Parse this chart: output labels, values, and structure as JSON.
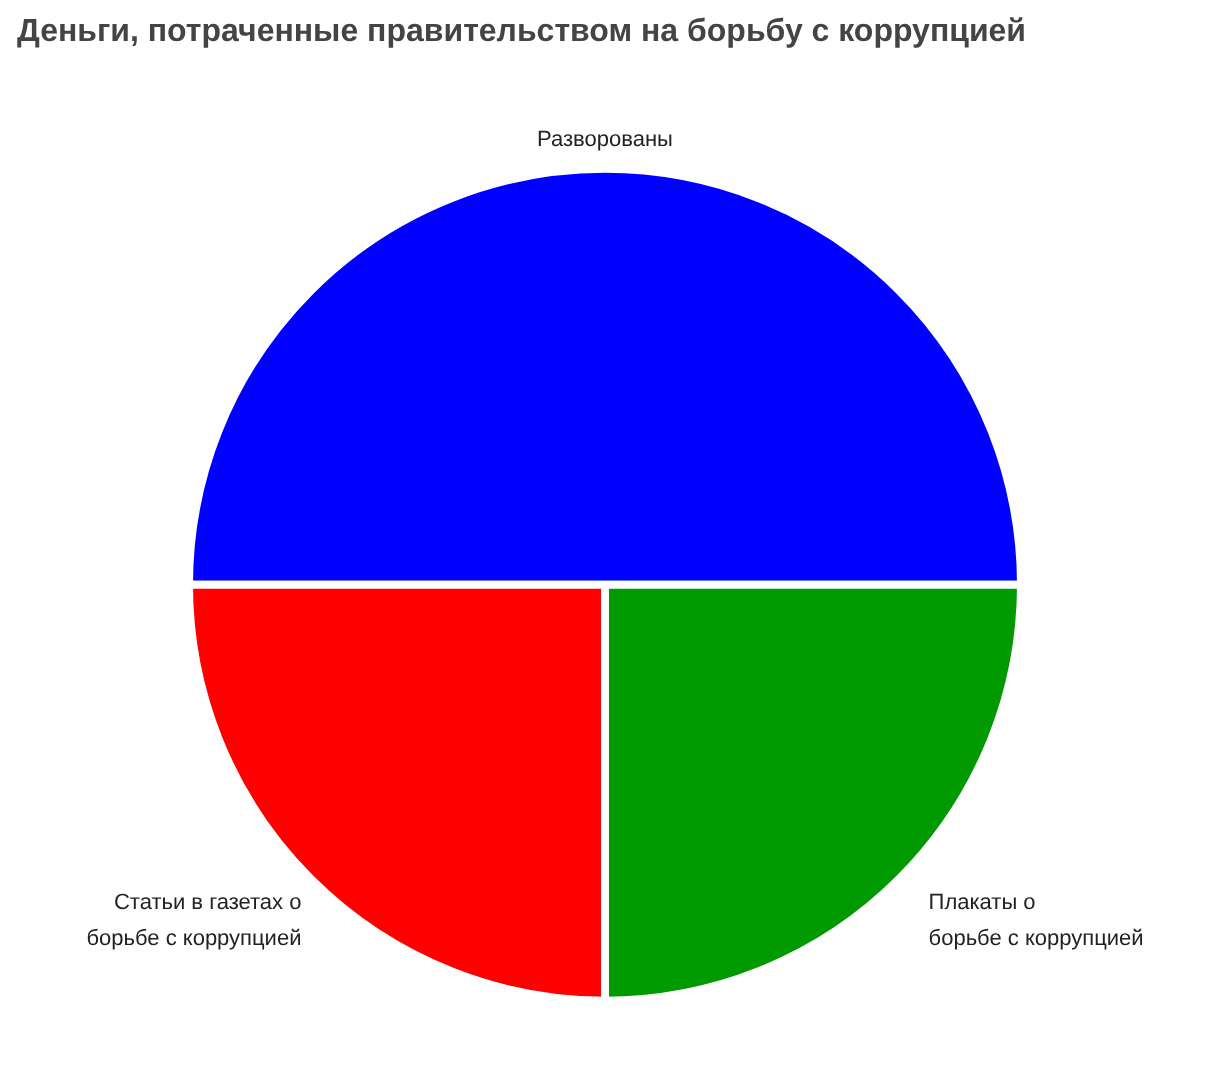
{
  "chart_data": {
    "type": "pie",
    "title": "Деньги, потраченные правительством на борьбу с коррупцией",
    "categories": [
      "Разворованы",
      "Статьи в газетах о\nборьбе с коррупцией",
      "Плакаты о\nборьбе с коррупцией"
    ],
    "values": [
      50,
      25,
      25
    ],
    "colors": [
      "#0000ff",
      "#ff0000",
      "#009900"
    ]
  }
}
